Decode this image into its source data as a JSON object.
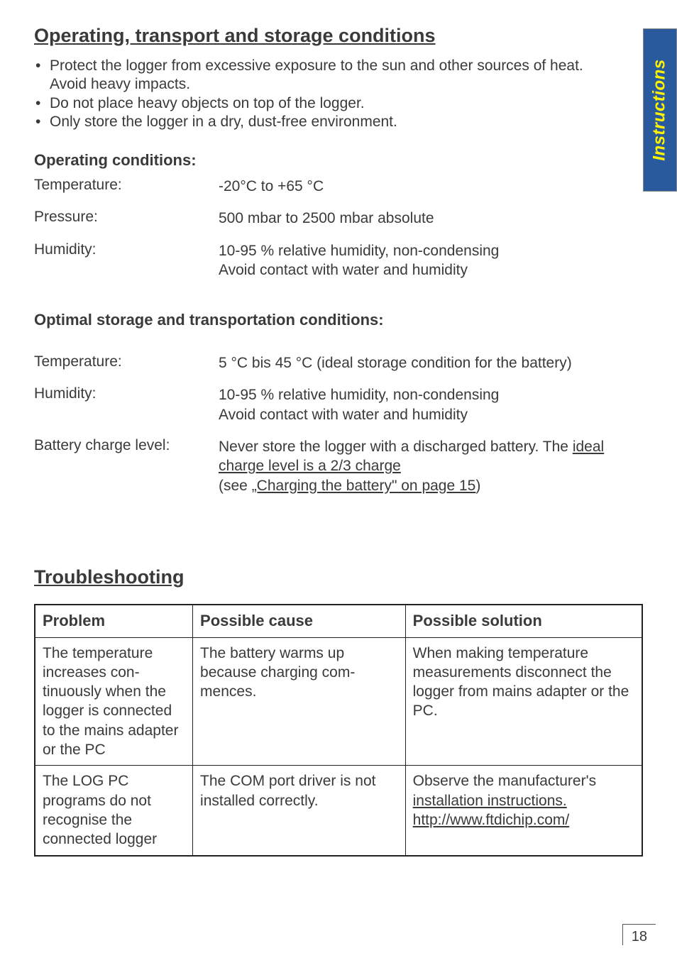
{
  "sideTab": "Instructions",
  "section1": {
    "title": "Operating, transport and storage conditions",
    "bullets": [
      "Protect the logger from excessive exposure to the sun and other sources of heat. Avoid heavy impacts.",
      "Do not place heavy objects on top of the logger.",
      "Only store the logger in a dry, dust-free environment."
    ],
    "opHead": "Operating conditions:",
    "op": [
      {
        "k": "Temperature:",
        "v": "-20°C to +65 °C"
      },
      {
        "k": "Pressure:",
        "v": "500 mbar to 2500 mbar absolute"
      },
      {
        "k": "Humidity:",
        "v": "10-95 % relative humidity, non-condensing\nAvoid contact with water and humidity"
      }
    ],
    "storeHead": "Optimal storage and transportation conditions:",
    "store": [
      {
        "k": "Temperature:",
        "v": "5 °C bis 45 °C (ideal storage condition for the battery)"
      },
      {
        "k": "Humidity:",
        "v": "10-95 % relative humidity, non-condensing\nAvoid contact with water and humidity"
      },
      {
        "k": "Battery charge level:",
        "prefix": "Never store the logger with a discharged battery. The ",
        "link1": "ideal charge level is a 2/3 charge",
        "mid": "\n(see ",
        "link2": "„Charging the battery\" on page 15",
        "suffix": ")"
      }
    ]
  },
  "section2": {
    "title": "Troubleshooting",
    "headers": [
      "Problem",
      "Possible cause",
      "Possible solution"
    ],
    "rows": [
      {
        "c1": "The temperature increases con-tinuously when the logger is connected to the mains adapter or the PC",
        "c2": "The battery warms up because charging com-mences.",
        "c3": "When making temperature measurements disconnect the logger from mains adapter or the PC."
      },
      {
        "c1": "The LOG PC programs do not recognise the connected logger",
        "c2": "The COM port driver is not installed correctly.",
        "c3_pre": "Observe the manufacturer's ",
        "c3_l1": "installation instructions.",
        "c3_l2": "http://www.ftdichip.com/"
      }
    ]
  },
  "pageNumber": "18"
}
